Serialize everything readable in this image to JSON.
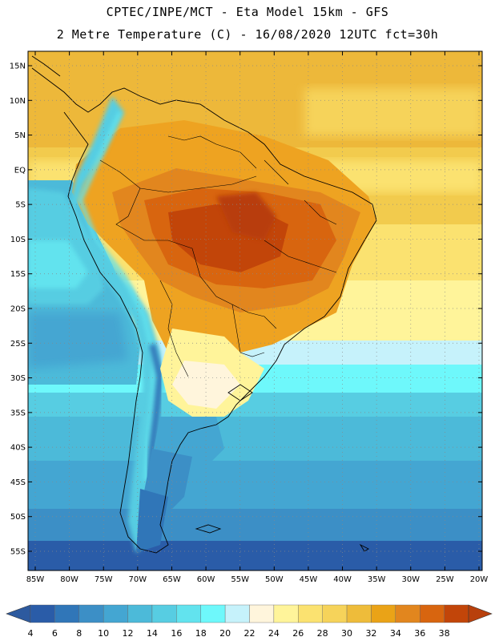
{
  "title_line1": "CPTEC/INPE/MCT  -   Eta Model 15km  -  GFS",
  "title_line2": "2 Metre Temperature (C) - 16/08/2020 12UTC fct=30h",
  "lat_labels": [
    "15N",
    "10N",
    "5N",
    "EQ",
    "5S",
    "10S",
    "15S",
    "20S",
    "25S",
    "30S",
    "35S",
    "40S",
    "45S",
    "50S",
    "55S"
  ],
  "lon_labels": [
    "85W",
    "80W",
    "75W",
    "70W",
    "65W",
    "60W",
    "55W",
    "50W",
    "45W",
    "40W",
    "35W",
    "30W",
    "25W",
    "20W"
  ],
  "colorbar": {
    "labels": [
      "4",
      "6",
      "8",
      "10",
      "12",
      "14",
      "16",
      "18",
      "20",
      "22",
      "24",
      "26",
      "28",
      "30",
      "32",
      "34",
      "36",
      "38"
    ],
    "colors": [
      "#2a5ca8",
      "#3076b8",
      "#3c8fc6",
      "#44a6d2",
      "#4cbad9",
      "#57cde2",
      "#62e3ee",
      "#6ef8fb",
      "#c6f2fb",
      "#fff5dc",
      "#fff49a",
      "#fbe270",
      "#f6d35a",
      "#eebc3a",
      "#eaa317",
      "#e2861e",
      "#d8650f",
      "#c24509"
    ],
    "low_color": "#2d5a9f",
    "high_color": "#b8400c"
  }
}
